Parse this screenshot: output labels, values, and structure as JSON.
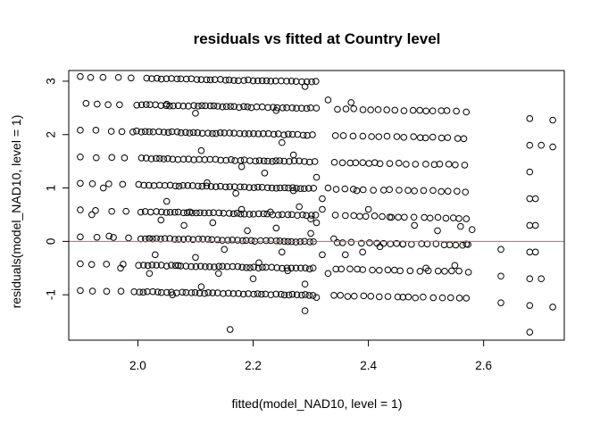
{
  "chart_data": {
    "type": "scatter",
    "title": "residuals vs fitted at Country level",
    "xlabel": "fitted(model_NAD10, level = 1)",
    "ylabel": "residuals(model_NAD10, level = 1)",
    "xlim": [
      1.88,
      2.74
    ],
    "ylim": [
      -1.85,
      3.2
    ],
    "x_ticks": [
      2.0,
      2.2,
      2.4,
      2.6
    ],
    "x_tick_labels": [
      "2.0",
      "2.2",
      "2.4",
      "2.6"
    ],
    "y_ticks": [
      -1,
      0,
      1,
      2,
      3
    ],
    "y_tick_labels": [
      "-1",
      "0",
      "1",
      "2",
      "3"
    ],
    "reference_line": {
      "y": 0,
      "color": "#e05555"
    },
    "grid": false,
    "marker": "open-circle",
    "marker_color": "#000000",
    "bands": [
      {
        "intercept": 3.08,
        "slope": -1.0,
        "x_from": 1.9,
        "x_to": 2.31
      },
      {
        "intercept": 2.58,
        "slope": -1.0,
        "x_from": 1.91,
        "x_to": 2.58
      },
      {
        "intercept": 2.08,
        "slope": -1.0,
        "x_from": 1.9,
        "x_to": 2.58
      },
      {
        "intercept": 1.58,
        "slope": -1.0,
        "x_from": 1.9,
        "x_to": 2.58
      },
      {
        "intercept": 1.08,
        "slope": -1.0,
        "x_from": 1.9,
        "x_to": 2.58
      },
      {
        "intercept": 0.58,
        "slope": -1.0,
        "x_from": 1.9,
        "x_to": 2.58
      },
      {
        "intercept": 0.08,
        "slope": -1.0,
        "x_from": 1.9,
        "x_to": 2.58
      },
      {
        "intercept": -0.42,
        "slope": -1.0,
        "x_from": 1.9,
        "x_to": 2.58
      },
      {
        "intercept": -0.92,
        "slope": -1.0,
        "x_from": 1.9,
        "x_to": 2.58
      }
    ],
    "scatter_points": [
      [
        2.68,
        2.3
      ],
      [
        2.72,
        2.27
      ],
      [
        2.68,
        1.8
      ],
      [
        2.7,
        1.8
      ],
      [
        2.72,
        1.77
      ],
      [
        2.68,
        1.3
      ],
      [
        2.68,
        0.8
      ],
      [
        2.69,
        0.8
      ],
      [
        2.68,
        0.3
      ],
      [
        2.69,
        0.3
      ],
      [
        2.68,
        -0.2
      ],
      [
        2.69,
        -0.2
      ],
      [
        2.68,
        -0.7
      ],
      [
        2.7,
        -0.7
      ],
      [
        2.68,
        -1.2
      ],
      [
        2.72,
        -1.23
      ],
      [
        2.68,
        -1.7
      ],
      [
        2.63,
        -0.15
      ],
      [
        2.63,
        -0.65
      ],
      [
        2.63,
        -1.15
      ],
      [
        2.57,
        -0.05
      ],
      [
        2.58,
        0.22
      ],
      [
        2.16,
        -1.65
      ],
      [
        2.05,
        0.75
      ],
      [
        2.22,
        1.28
      ],
      [
        2.27,
        1.62
      ],
      [
        2.05,
        2.57
      ],
      [
        2.08,
        0.3
      ],
      [
        2.1,
        -0.3
      ],
      [
        2.12,
        1.1
      ],
      [
        2.14,
        -0.6
      ],
      [
        2.17,
        0.9
      ],
      [
        2.19,
        0.2
      ],
      [
        2.21,
        -0.4
      ],
      [
        2.23,
        0.55
      ],
      [
        2.25,
        -0.2
      ],
      [
        2.28,
        0.65
      ],
      [
        2.29,
        -0.8
      ],
      [
        2.3,
        0.15
      ],
      [
        2.31,
        1.2
      ],
      [
        2.31,
        -1.05
      ],
      [
        2.3,
        0.42
      ],
      [
        2.32,
        -0.25
      ],
      [
        2.03,
        -0.25
      ],
      [
        2.02,
        0.05
      ],
      [
        2.06,
        -1.0
      ],
      [
        2.09,
        0.55
      ],
      [
        2.11,
        -0.85
      ],
      [
        2.13,
        0.35
      ],
      [
        2.15,
        -0.15
      ],
      [
        2.18,
        0.6
      ],
      [
        2.2,
        -0.7
      ],
      [
        2.24,
        0.25
      ],
      [
        2.26,
        -0.55
      ],
      [
        2.27,
        0.95
      ],
      [
        2.29,
        -1.3
      ],
      [
        2.31,
        0.35
      ],
      [
        2.02,
        -0.6
      ],
      [
        2.04,
        0.4
      ],
      [
        2.07,
        -0.45
      ],
      [
        2.25,
        1.85
      ],
      [
        2.18,
        1.4
      ],
      [
        2.11,
        1.7
      ],
      [
        2.38,
        0.95
      ],
      [
        2.39,
        -0.2
      ],
      [
        2.4,
        0.6
      ],
      [
        2.42,
        -0.1
      ],
      [
        2.44,
        0.45
      ],
      [
        2.46,
        -0.05
      ],
      [
        2.48,
        0.3
      ],
      [
        2.5,
        -0.5
      ],
      [
        2.52,
        0.2
      ],
      [
        2.55,
        -0.45
      ],
      [
        2.56,
        0.28
      ],
      [
        2.36,
        -0.25
      ],
      [
        2.34,
        0.05
      ],
      [
        2.33,
        -0.6
      ],
      [
        2.33,
        1.0
      ],
      [
        2.32,
        0.6
      ],
      [
        2.32,
        0.8
      ],
      [
        1.95,
        0.1
      ],
      [
        1.97,
        -0.5
      ],
      [
        1.94,
        1.0
      ],
      [
        1.92,
        0.5
      ],
      [
        2.33,
        2.65
      ],
      [
        2.37,
        2.6
      ],
      [
        2.29,
        2.9
      ],
      [
        2.24,
        2.45
      ],
      [
        2.1,
        2.4
      ]
    ]
  }
}
